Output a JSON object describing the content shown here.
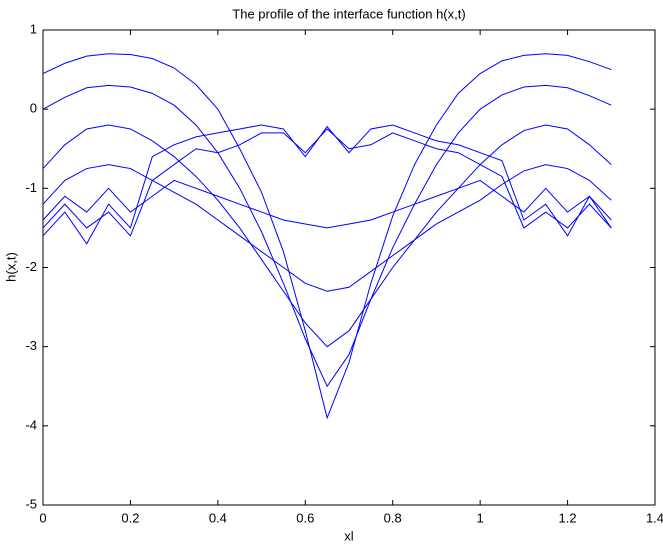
{
  "chart_data": {
    "type": "line",
    "title": "The profile of the interface function h(x,t)",
    "x_label": "xl",
    "y_label": "h(x,t)",
    "x": [
      0,
      0.05,
      0.1,
      0.15,
      0.2,
      0.25,
      0.3,
      0.35,
      0.4,
      0.45,
      0.5,
      0.55,
      0.6,
      0.65,
      0.7,
      0.75,
      0.8,
      0.85,
      0.9,
      0.95,
      1.0,
      1.05,
      1.1,
      1.15,
      1.2,
      1.25,
      1.3
    ],
    "series": [
      {
        "color": "#0000ff",
        "values": [
          0.45,
          0.58,
          0.67,
          0.7,
          0.69,
          0.64,
          0.52,
          0.31,
          0.0,
          -0.5,
          -1.05,
          -1.8,
          -2.8,
          -3.9,
          -3.2,
          -2.2,
          -1.35,
          -0.7,
          -0.2,
          0.2,
          0.45,
          0.61,
          0.68,
          0.7,
          0.68,
          0.6,
          0.5
        ]
      },
      {
        "color": "#0000ff",
        "values": [
          0.0,
          0.15,
          0.27,
          0.3,
          0.28,
          0.2,
          0.05,
          -0.2,
          -0.55,
          -1.0,
          -1.55,
          -2.2,
          -2.9,
          -3.5,
          -3.1,
          -2.4,
          -1.75,
          -1.2,
          -0.7,
          -0.3,
          0.0,
          0.18,
          0.28,
          0.3,
          0.27,
          0.17,
          0.05
        ]
      },
      {
        "color": "#0000ff",
        "values": [
          -0.75,
          -0.45,
          -0.25,
          -0.2,
          -0.25,
          -0.4,
          -0.6,
          -0.85,
          -1.15,
          -1.5,
          -1.9,
          -2.3,
          -2.7,
          -3.0,
          -2.8,
          -2.4,
          -2.0,
          -1.65,
          -1.3,
          -1.0,
          -0.7,
          -0.45,
          -0.27,
          -0.2,
          -0.25,
          -0.45,
          -0.7
        ]
      },
      {
        "color": "#0000ff",
        "values": [
          -1.2,
          -0.9,
          -0.75,
          -0.7,
          -0.75,
          -0.9,
          -1.05,
          -1.2,
          -1.4,
          -1.6,
          -1.8,
          -2.0,
          -2.2,
          -2.3,
          -2.25,
          -2.05,
          -1.85,
          -1.65,
          -1.45,
          -1.3,
          -1.15,
          -0.95,
          -0.78,
          -0.7,
          -0.75,
          -0.9,
          -1.15
        ]
      },
      {
        "color": "#0000ff",
        "values": [
          -1.4,
          -1.1,
          -1.3,
          -1.0,
          -1.3,
          -1.1,
          -0.9,
          -1.0,
          -1.1,
          -1.2,
          -1.3,
          -1.4,
          -1.45,
          -1.5,
          -1.45,
          -1.4,
          -1.3,
          -1.2,
          -1.1,
          -1.0,
          -0.9,
          -1.1,
          -1.3,
          -1.0,
          -1.3,
          -1.1,
          -1.4
        ]
      },
      {
        "color": "#0000ff",
        "values": [
          -1.5,
          -1.2,
          -1.5,
          -1.3,
          -1.6,
          -0.9,
          -0.7,
          -0.5,
          -0.55,
          -0.45,
          -0.3,
          -0.3,
          -0.55,
          -0.25,
          -0.5,
          -0.45,
          -0.3,
          -0.4,
          -0.5,
          -0.55,
          -0.7,
          -0.85,
          -1.5,
          -1.3,
          -1.5,
          -1.2,
          -1.5
        ]
      },
      {
        "color": "#0000ff",
        "values": [
          -1.6,
          -1.3,
          -1.7,
          -1.2,
          -1.5,
          -0.6,
          -0.45,
          -0.35,
          -0.3,
          -0.25,
          -0.2,
          -0.25,
          -0.6,
          -0.22,
          -0.55,
          -0.25,
          -0.2,
          -0.3,
          -0.4,
          -0.45,
          -0.55,
          -0.65,
          -1.4,
          -1.2,
          -1.6,
          -1.1,
          -1.5
        ]
      }
    ],
    "xlim": [
      0,
      1.4
    ],
    "xticks": [
      0,
      0.2,
      0.4,
      0.6,
      0.8,
      1,
      1.2,
      1.4
    ],
    "ylim": [
      -5,
      1
    ],
    "yticks": [
      -5,
      -4,
      -3,
      -2,
      -1,
      0,
      1
    ]
  }
}
